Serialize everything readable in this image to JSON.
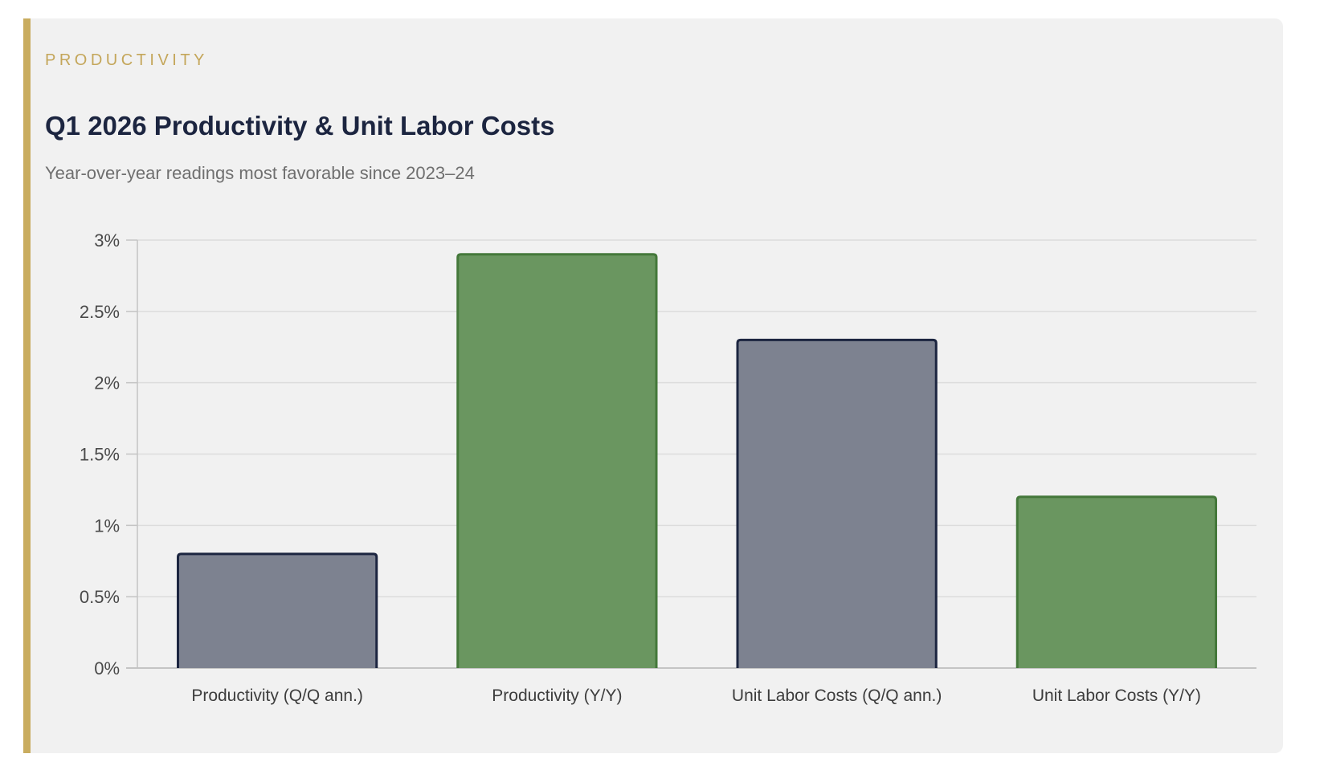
{
  "card": {
    "eyebrow": "PRODUCTIVITY",
    "title": "Q1 2026 Productivity & Unit Labor Costs",
    "subtitle": "Year-over-year readings most favorable since 2023–24"
  },
  "colors": {
    "accent": "#c9ac5f",
    "bar_navy_fill": "#7d8290",
    "bar_navy_stroke": "#1c2540",
    "bar_green_fill": "#6a9660",
    "bar_green_stroke": "#44783a",
    "grid": "#dcdcdc",
    "axis": "#c4c4c4"
  },
  "chart_data": {
    "type": "bar",
    "title": "Q1 2026 Productivity & Unit Labor Costs",
    "subtitle": "Year-over-year readings most favorable since 2023–24",
    "categories": [
      "Productivity (Q/Q ann.)",
      "Productivity (Y/Y)",
      "Unit Labor Costs (Q/Q ann.)",
      "Unit Labor Costs (Y/Y)"
    ],
    "values": [
      0.8,
      2.9,
      2.3,
      1.2
    ],
    "bar_colors": [
      "navy",
      "green",
      "navy",
      "green"
    ],
    "ylim": [
      0,
      3
    ],
    "yticks": [
      0,
      0.5,
      1,
      1.5,
      2,
      2.5,
      3
    ],
    "ytick_labels": [
      "0%",
      "0.5%",
      "1%",
      "1.5%",
      "2%",
      "2.5%",
      "3%"
    ],
    "xlabel": "",
    "ylabel": "",
    "grid": true,
    "legend": "none"
  }
}
